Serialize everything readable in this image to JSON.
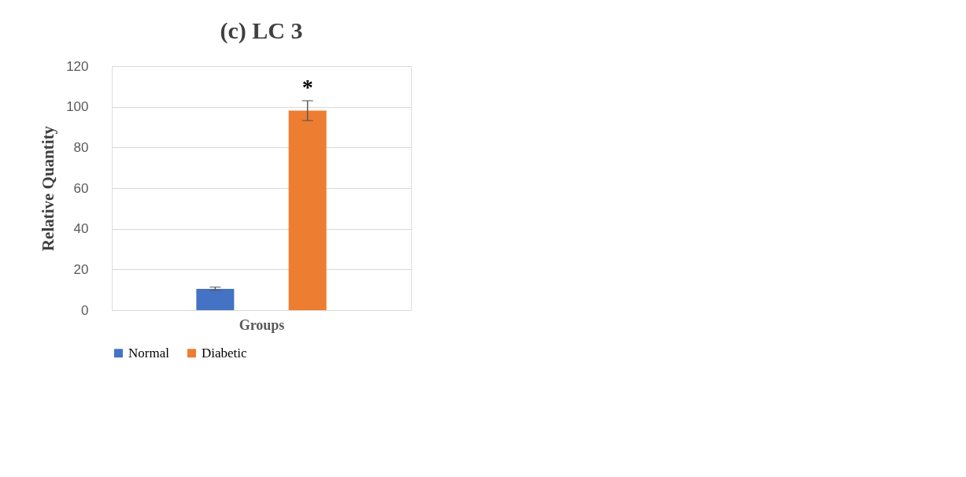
{
  "chart_data": {
    "type": "bar",
    "title": "(c) LC 3",
    "xlabel": "Groups",
    "ylabel": "Relative Quantity",
    "categories": [
      null
    ],
    "series": [
      {
        "name": "Normal",
        "color": "#4472c4",
        "values": [
          10.5
        ],
        "errors": [
          0.8
        ]
      },
      {
        "name": "Diabetic",
        "color": "#ed7d31",
        "values": [
          98.1
        ],
        "errors": [
          4.9
        ]
      }
    ],
    "ylim": [
      0,
      120
    ],
    "yticks": [
      0,
      20,
      40,
      60,
      80,
      100,
      120
    ],
    "grid": "y",
    "legend": "bottom",
    "tick_labels": "y",
    "annotations": [
      "*"
    ]
  }
}
